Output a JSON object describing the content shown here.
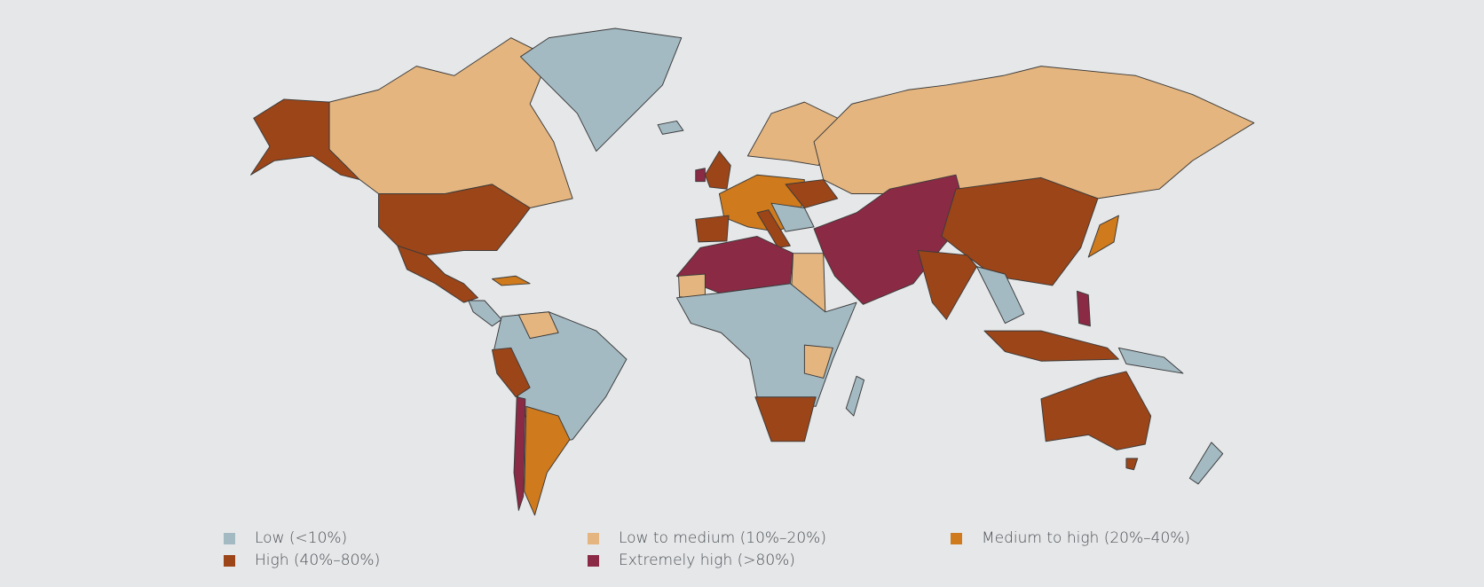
{
  "legend": {
    "low": {
      "label": "Low (<10%)",
      "color": "#a4bac3"
    },
    "low_medium": {
      "label": "Low to medium (10%–20%)",
      "color": "#e4b57f"
    },
    "medium_high": {
      "label": "Medium to high (20%–40%)",
      "color": "#cf7a1c"
    },
    "high": {
      "label": "High (40%–80%)",
      "color": "#9b4519"
    },
    "extremely_high": {
      "label": "Extremely high (>80%)",
      "color": "#8b2a45"
    }
  },
  "background_color": "#e6e7e8"
}
